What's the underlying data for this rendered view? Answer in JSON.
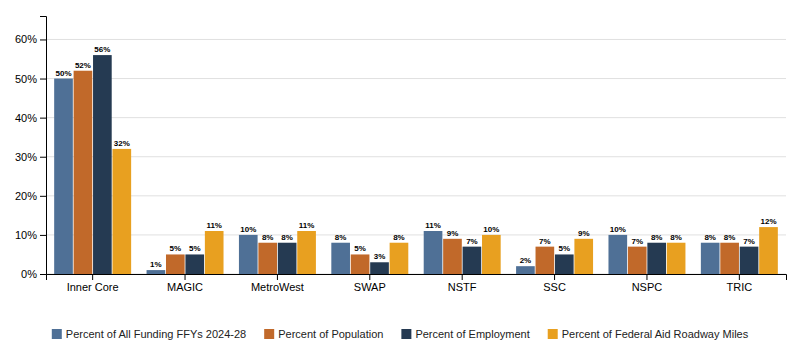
{
  "chart_data": {
    "type": "bar",
    "categories": [
      "Inner Core",
      "MAGIC",
      "MetroWest",
      "SWAP",
      "NSTF",
      "SSC",
      "NSPC",
      "TRIC"
    ],
    "series": [
      {
        "name": "Percent of All Funding FFYs 2024-28",
        "color": "#4f7096",
        "values": [
          50,
          1,
          10,
          8,
          11,
          2,
          10,
          8
        ],
        "value_labels": [
          "50%",
          "1%",
          "10%",
          "8%",
          "11%",
          "2%",
          "10%",
          "8%"
        ]
      },
      {
        "name": "Percent of Population",
        "color": "#c1692a",
        "values": [
          52,
          5,
          8,
          5,
          9,
          7,
          7,
          8
        ],
        "value_labels": [
          "52%",
          "5%",
          "8%",
          "5%",
          "9%",
          "7%",
          "7%",
          "8%"
        ]
      },
      {
        "name": "Percent of Employment",
        "color": "#253a52",
        "values": [
          56,
          5,
          8,
          3,
          7,
          5,
          8,
          7
        ],
        "value_labels": [
          "56%",
          "5%",
          "8%",
          "3%",
          "7%",
          "5%",
          "8%",
          "7%"
        ]
      },
      {
        "name": "Percent of Federal Aid Roadway Miles",
        "color": "#e8a020",
        "values": [
          32,
          11,
          11,
          8,
          10,
          9,
          8,
          12
        ],
        "value_labels": [
          "32%",
          "11%",
          "11%",
          "8%",
          "10%",
          "9%",
          "8%",
          "12%"
        ]
      }
    ],
    "ylim": [
      0,
      66
    ],
    "yticks": [
      {
        "value": 0,
        "label": "0%"
      },
      {
        "value": 10,
        "label": "10%"
      },
      {
        "value": 20,
        "label": "20%"
      },
      {
        "value": 30,
        "label": "30%"
      },
      {
        "value": 40,
        "label": "40%"
      },
      {
        "value": 50,
        "label": "50%"
      },
      {
        "value": 60,
        "label": "60%"
      }
    ],
    "grid": true,
    "data_labels": true,
    "legend": "bottom"
  }
}
